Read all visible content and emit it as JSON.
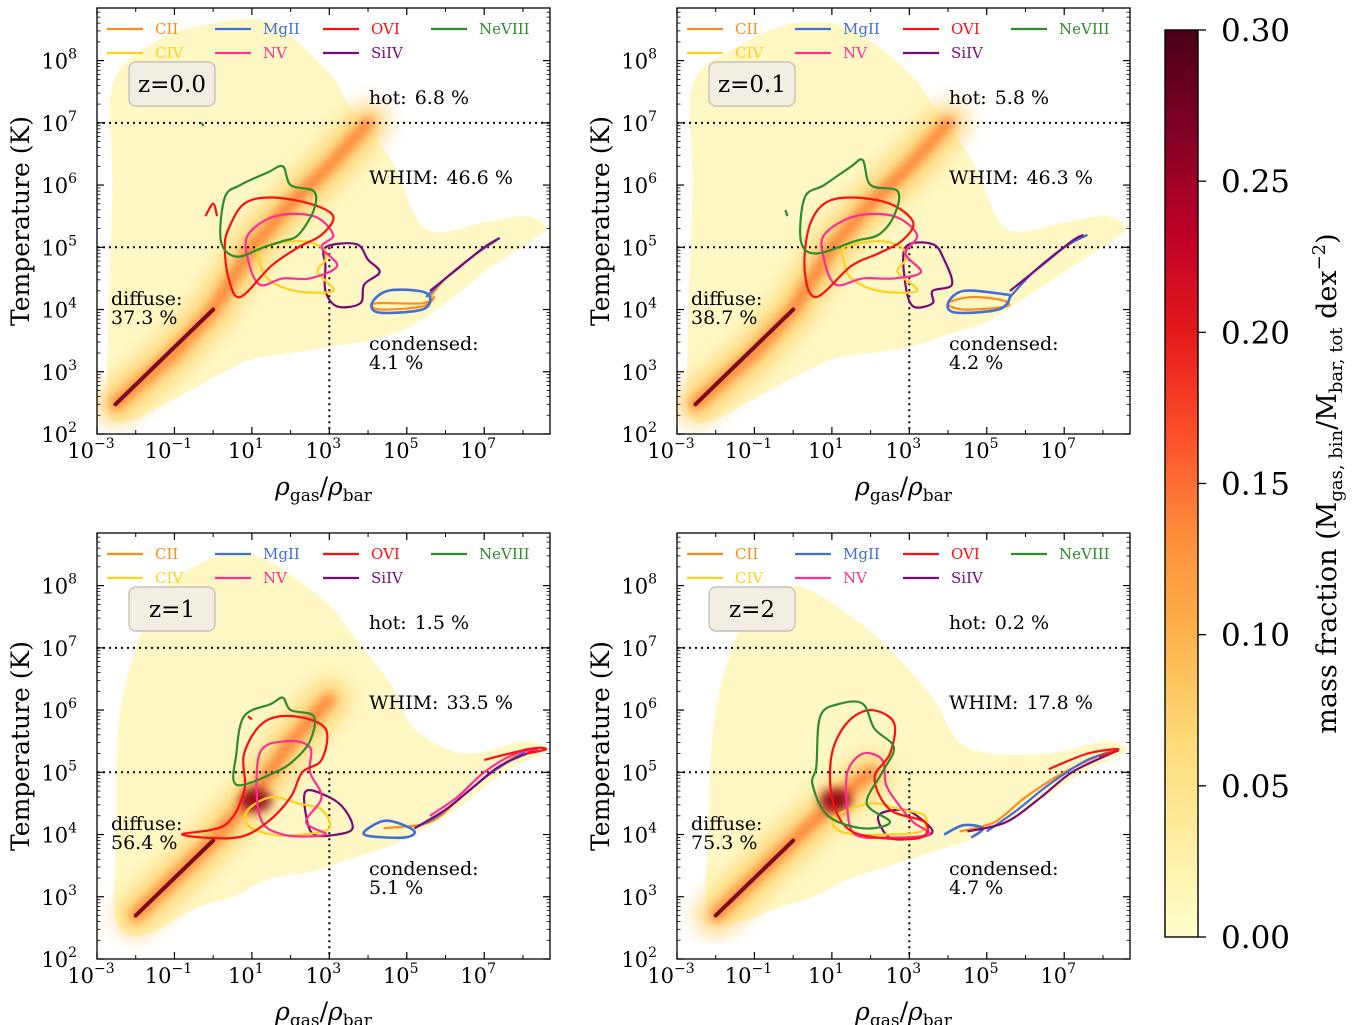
{
  "figure": {
    "colorbar": {
      "label": "mass fraction (M",
      "label_sub1": "gas, bin",
      "label_mid": "/M",
      "label_sub2": "bar, tot",
      "label_tail": " dex",
      "label_sup": "−2",
      "label_close": ")",
      "ticks": [
        "0.00",
        "0.05",
        "0.10",
        "0.15",
        "0.20",
        "0.25",
        "0.30"
      ],
      "range": [
        0,
        0.3
      ],
      "cmap": [
        "#ffffcc",
        "#ffeda0",
        "#fed976",
        "#feb24c",
        "#fd8d3c",
        "#fc4e2a",
        "#e31a1c",
        "#bd0026",
        "#800026",
        "#4a0018"
      ]
    },
    "axes_text": {
      "ylabel": "Temperature (K)",
      "xlabel_rho": "ρ",
      "xlabel_gas": "gas",
      "xlabel_slash": "/",
      "xlabel_bar": "bar",
      "x_ticks": [
        "10",
        "10",
        "10",
        "10",
        "10",
        "10",
        "10"
      ],
      "x_tick_exps": [
        "−3",
        "−1",
        "1",
        "3",
        "5",
        "7",
        ""
      ],
      "y_ticks": [
        "10",
        "10",
        "10",
        "10",
        "10",
        "10",
        "10"
      ],
      "y_tick_exps": [
        "2",
        "3",
        "4",
        "5",
        "6",
        "7",
        "8"
      ]
    },
    "legend": {
      "entries": [
        {
          "name": "CII",
          "color": "#ff8c1a"
        },
        {
          "name": "CIV",
          "color": "#ffd21f"
        },
        {
          "name": "MgII",
          "color": "#3f6fd8"
        },
        {
          "name": "NV",
          "color": "#ff2f92"
        },
        {
          "name": "OVI",
          "color": "#ff1010"
        },
        {
          "name": "SiIV",
          "color": "#7a0a7a"
        },
        {
          "name": "NeVIII",
          "color": "#2e8b2e"
        }
      ]
    },
    "phase_labels": {
      "hot": "hot:",
      "whim": "WHIM:",
      "diffuse": "diffuse:",
      "condensed": "condensed:"
    }
  },
  "chart_data": [
    {
      "type": "heatmap",
      "redshift_label": "z=0.0",
      "xscale": "log",
      "yscale": "log",
      "xlim": [
        0.001,
        500000000
      ],
      "ylim": [
        100,
        700000000
      ],
      "threshold_lines": {
        "T": [
          100000,
          10000000
        ],
        "rho": 1000
      },
      "phase_fractions": {
        "hot": "6.8 %",
        "whim": "46.6 %",
        "diffuse": "37.3 %",
        "condensed": "4.1 %"
      },
      "ridge": [
        [
          0.003,
          300
        ],
        [
          0.1,
          2000
        ],
        [
          1,
          10000
        ],
        [
          10,
          100000
        ],
        [
          100,
          500000
        ],
        [
          1000,
          2000000
        ],
        [
          10000,
          10000000
        ]
      ]
    },
    {
      "type": "heatmap",
      "redshift_label": "z=0.1",
      "xscale": "log",
      "yscale": "log",
      "xlim": [
        0.001,
        500000000
      ],
      "ylim": [
        100,
        700000000
      ],
      "threshold_lines": {
        "T": [
          100000,
          10000000
        ],
        "rho": 1000
      },
      "phase_fractions": {
        "hot": "5.8 %",
        "whim": "46.3 %",
        "diffuse": "38.7 %",
        "condensed": "4.2 %"
      },
      "ridge": [
        [
          0.003,
          300
        ],
        [
          0.1,
          2000
        ],
        [
          1,
          10000
        ],
        [
          10,
          100000
        ],
        [
          100,
          500000
        ],
        [
          1000,
          2000000
        ],
        [
          10000,
          10000000
        ]
      ]
    },
    {
      "type": "heatmap",
      "redshift_label": "z=1",
      "xscale": "log",
      "yscale": "log",
      "xlim": [
        0.001,
        500000000
      ],
      "ylim": [
        100,
        700000000
      ],
      "threshold_lines": {
        "T": [
          100000,
          10000000
        ],
        "rho": 1000
      },
      "phase_fractions": {
        "hot": "1.5 %",
        "whim": "33.5 %",
        "diffuse": "56.4 %",
        "condensed": "5.1 %"
      },
      "ridge": [
        [
          0.01,
          500
        ],
        [
          0.1,
          2000
        ],
        [
          1,
          8000
        ],
        [
          10,
          40000
        ],
        [
          100,
          300000
        ],
        [
          1000,
          1500000
        ]
      ]
    },
    {
      "type": "heatmap",
      "redshift_label": "z=2",
      "xscale": "log",
      "yscale": "log",
      "xlim": [
        0.001,
        500000000
      ],
      "ylim": [
        100,
        700000000
      ],
      "threshold_lines": {
        "T": [
          100000,
          10000000
        ],
        "rho": 1000
      },
      "phase_fractions": {
        "hot": "0.2 %",
        "whim": "17.8 %",
        "diffuse": "75.3 %",
        "condensed": "4.7 %"
      },
      "ridge": [
        [
          0.01,
          500
        ],
        [
          0.1,
          2000
        ],
        [
          1,
          8000
        ],
        [
          10,
          30000
        ],
        [
          100,
          100000
        ]
      ]
    }
  ]
}
